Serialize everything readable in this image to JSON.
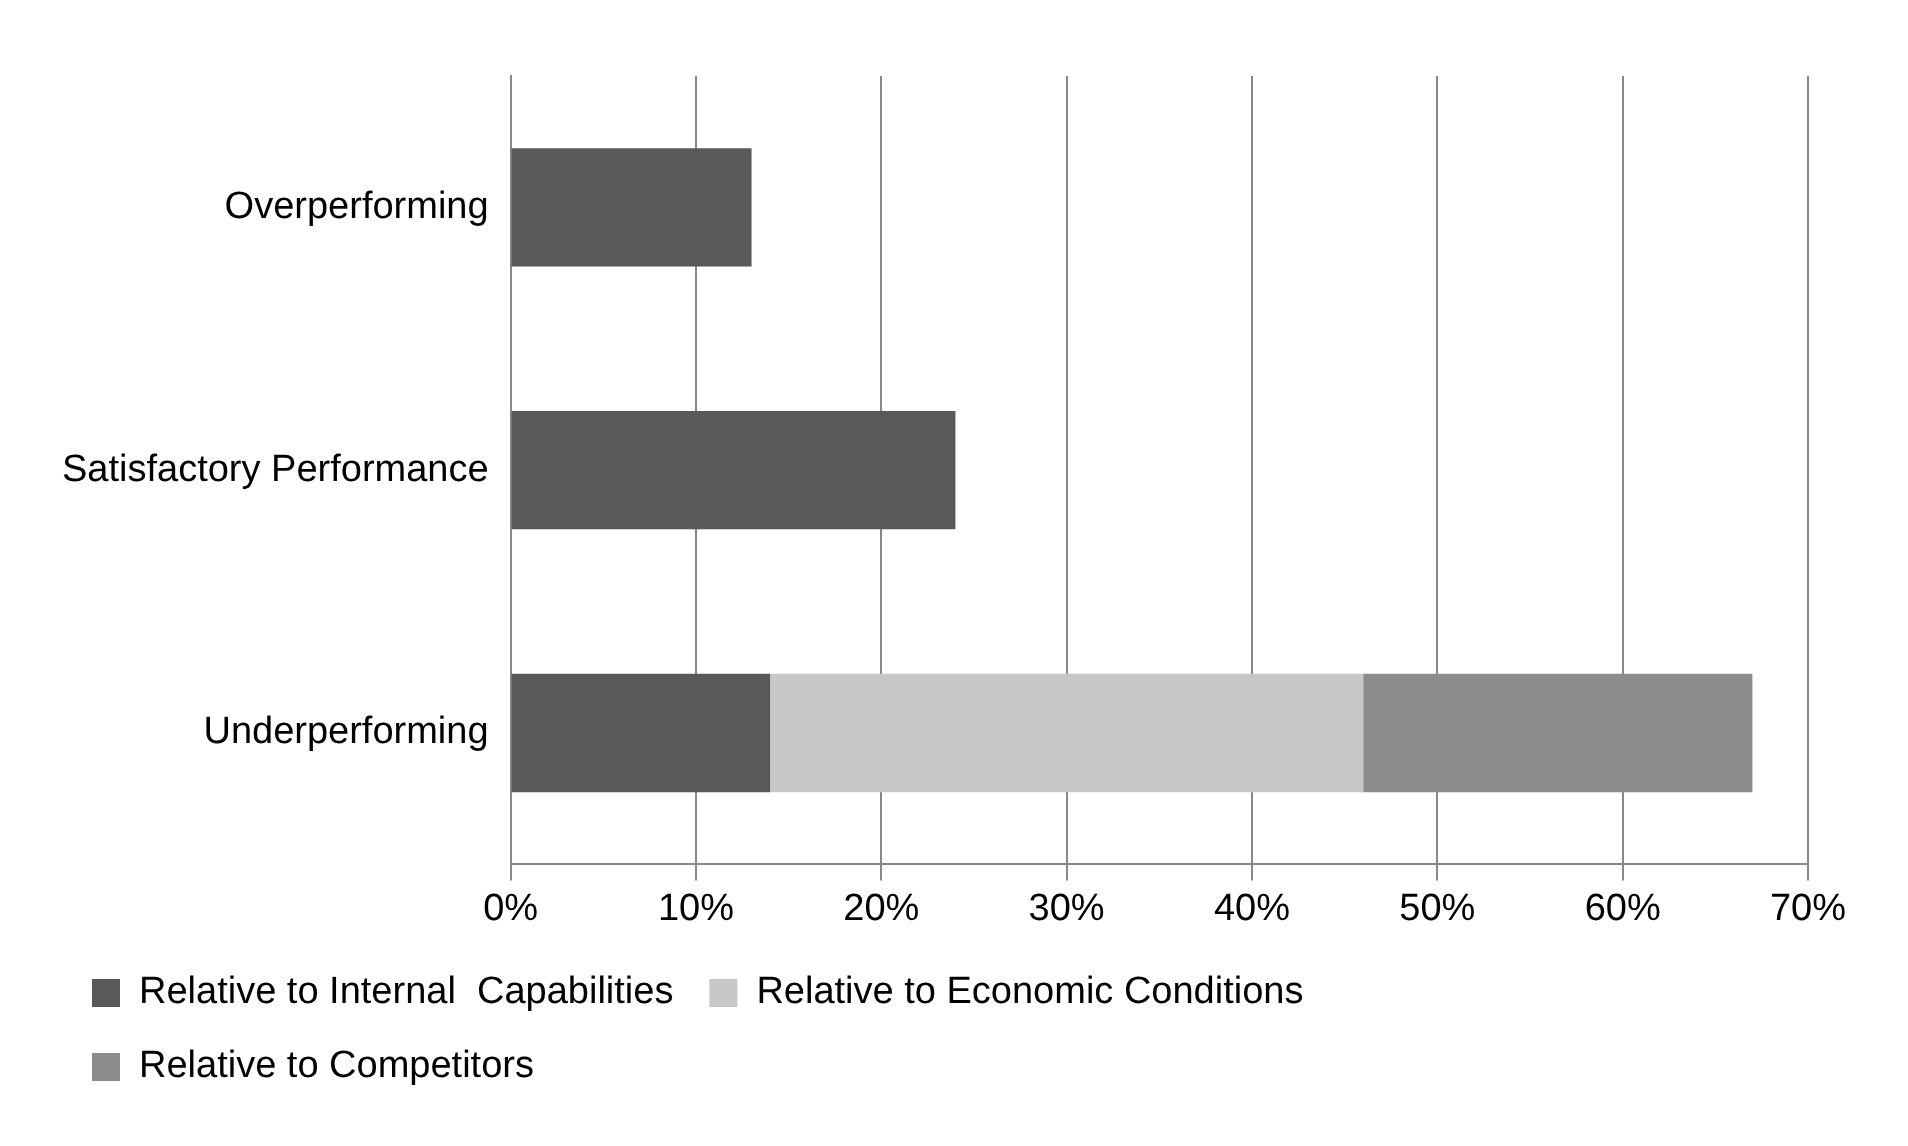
{
  "chart_data": {
    "type": "bar",
    "orientation": "horizontal",
    "stacked": true,
    "categories": [
      "Overperforming",
      "Satisfactory Performance",
      "Underperforming"
    ],
    "series": [
      {
        "name": "Relative to Internal  Capabilities",
        "color": "#595959",
        "values": [
          13,
          24,
          14
        ]
      },
      {
        "name": "Relative to Economic Conditions",
        "color": "#c8c8c8",
        "values": [
          0,
          0,
          32
        ]
      },
      {
        "name": "Relative to Competitors",
        "color": "#8c8c8c",
        "values": [
          0,
          0,
          21
        ]
      }
    ],
    "xlim": [
      0,
      70
    ],
    "xticks": [
      {
        "value": 0,
        "label": "0%"
      },
      {
        "value": 10,
        "label": "10%"
      },
      {
        "value": 20,
        "label": "20%"
      },
      {
        "value": 30,
        "label": "30%"
      },
      {
        "value": 40,
        "label": "40%"
      },
      {
        "value": 50,
        "label": "50%"
      },
      {
        "value": 60,
        "label": "60%"
      },
      {
        "value": 70,
        "label": "70%"
      }
    ],
    "grid": "x",
    "legend": "bottom"
  }
}
